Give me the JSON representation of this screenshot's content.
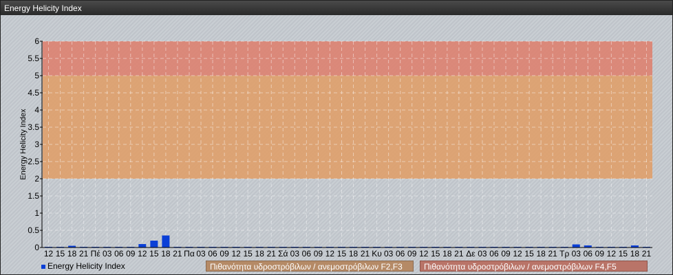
{
  "window": {
    "title": "Energy Helicity Index"
  },
  "chart_data": {
    "type": "bar",
    "ylabel": "Energy Helicity Index",
    "ylim": [
      0,
      6
    ],
    "yticks": [
      0,
      0.5,
      1,
      1.5,
      2,
      2.5,
      3,
      3.5,
      4,
      4.5,
      5,
      5.5,
      6
    ],
    "grid": true,
    "categories": [
      "12",
      "15",
      "18",
      "21",
      "Πέ",
      "03",
      "06",
      "09",
      "12",
      "15",
      "18",
      "21",
      "Πα",
      "03",
      "06",
      "09",
      "12",
      "15",
      "18",
      "21",
      "Σά",
      "03",
      "06",
      "09",
      "12",
      "15",
      "18",
      "21",
      "Κυ",
      "03",
      "06",
      "09",
      "12",
      "15",
      "18",
      "21",
      "Δε",
      "03",
      "06",
      "09",
      "12",
      "15",
      "18",
      "21",
      "Τρ",
      "03",
      "06",
      "09",
      "12",
      "15",
      "18",
      "21"
    ],
    "series": [
      {
        "name": "Energy Helicity Index",
        "color": "#0a3fd6",
        "values": [
          0.02,
          0.02,
          0.05,
          0.02,
          0.02,
          0.02,
          0.02,
          0.02,
          0.1,
          0.2,
          0.35,
          0.02,
          0.02,
          0.02,
          0.02,
          0.02,
          0.02,
          0.02,
          0.02,
          0.02,
          0.02,
          0.02,
          0.02,
          0.02,
          0.02,
          0.02,
          0.02,
          0.02,
          0.02,
          0.02,
          0.02,
          0.02,
          0.02,
          0.02,
          0.02,
          0.02,
          0.02,
          0.02,
          0.02,
          0.02,
          0.02,
          0.02,
          0.02,
          0.02,
          0.02,
          0.09,
          0.06,
          0.02,
          0.02,
          0.02,
          0.06,
          0.02
        ]
      }
    ],
    "bands": [
      {
        "from": 2,
        "to": 5,
        "color": "#dfa06a",
        "label": "Πιθανότητα υδροστρόβιλων / ανεμοστρόβιλων F2,F3"
      },
      {
        "from": 5,
        "to": 6,
        "color": "#dd8270",
        "label": "Πιθανότητα υδροστρόβιλων / ανεμοστρόβιλων F4,F5"
      }
    ],
    "legend": "bottom-left"
  }
}
